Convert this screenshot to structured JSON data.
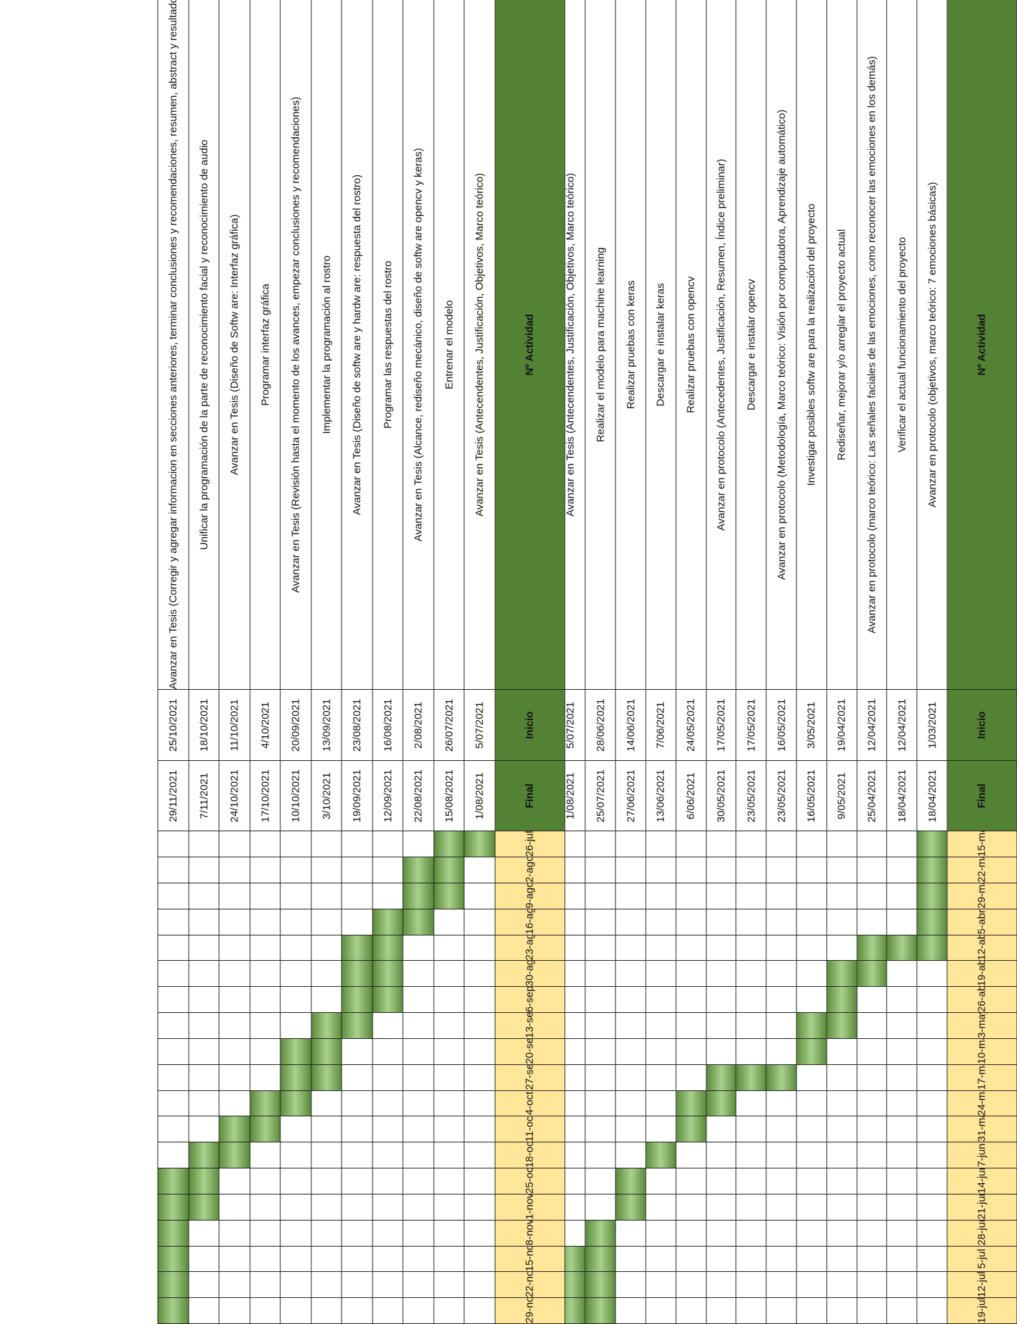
{
  "headers": {
    "activity": "Nº Actividad",
    "start": "Inicio",
    "end": "Final"
  },
  "section1": {
    "weeks": [
      "15-mar",
      "22-mar",
      "29-mar",
      "5-abr",
      "12-abr",
      "19-abr",
      "26-abr",
      "3-may",
      "10-may",
      "17-may",
      "24-may",
      "31-may",
      "7-jun",
      "14-jun",
      "21-jun",
      "28-jun",
      "5-jul",
      "12-jul",
      "19-jul"
    ],
    "rows": [
      {
        "activity": "Avanzar en protocolo (objetivos, marco teórico: 7 emociones básicas)",
        "start": "1/03/2021",
        "end": "18/04/2021",
        "bars": [
          0,
          1,
          2,
          3,
          4
        ]
      },
      {
        "activity": "Verificar el actual funcionamiento del proyecto",
        "start": "12/04/2021",
        "end": "18/04/2021",
        "bars": [
          4
        ]
      },
      {
        "activity": "Avanzar en protocolo (marco teórico: Las señales faciales de las emociones, como reconocer las emociones en los demás)",
        "start": "12/04/2021",
        "end": "25/04/2021",
        "bars": [
          4,
          5
        ]
      },
      {
        "activity": "Rediseñar, mejorar y/o arreglar el proyecto actual",
        "start": "19/04/2021",
        "end": "9/05/2021",
        "bars": [
          5,
          6,
          7
        ]
      },
      {
        "activity": "Investigar posibles softw are para la realización del proyecto",
        "start": "3/05/2021",
        "end": "16/05/2021",
        "bars": [
          7,
          8
        ]
      },
      {
        "activity": "Avanzar en protocolo (Metodología, Marco teórico: Visión por computadora, Aprendizaje automático)",
        "start": "16/05/2021",
        "end": "23/05/2021",
        "bars": [
          9
        ]
      },
      {
        "activity": "Descargar e instalar opencv",
        "start": "17/05/2021",
        "end": "23/05/2021",
        "bars": [
          9
        ]
      },
      {
        "activity": "Avanzar en protocolo (Antecedentes, Justificación, Resumen, Índice preliminar)",
        "start": "17/05/2021",
        "end": "30/05/2021",
        "bars": [
          9,
          10
        ]
      },
      {
        "activity": "Realizar pruebas con opencv",
        "start": "24/05/2021",
        "end": "6/06/2021",
        "bars": [
          10,
          11
        ]
      },
      {
        "activity": "Descargar e instalar keras",
        "start": "7/06/2021",
        "end": "13/06/2021",
        "bars": [
          12
        ]
      },
      {
        "activity": "Realizar pruebas con keras",
        "start": "14/06/2021",
        "end": "27/06/2021",
        "bars": [
          13,
          14
        ]
      },
      {
        "activity": "Realizar el modelo para machine learning",
        "start": "28/06/2021",
        "end": "25/07/2021",
        "bars": [
          15,
          16,
          17,
          18
        ]
      },
      {
        "activity": "Avanzar en Tesis (Antecendentes, Justificación, Objetivos, Marco teórico)",
        "start": "5/07/2021",
        "end": "1/08/2021",
        "bars": [
          16,
          17,
          18
        ]
      }
    ]
  },
  "section2": {
    "weeks": [
      "26-jul",
      "2-ago",
      "9-ago",
      "16-ago",
      "23-ago",
      "30-ago",
      "6-sep",
      "13-sep",
      "20-sep",
      "27-sep",
      "4-oct",
      "11-oct",
      "18-oct",
      "25-oct",
      "1-nov",
      "8-nov",
      "15-nov",
      "22-nov",
      "29-nov"
    ],
    "rows": [
      {
        "activity": "Avanzar en Tesis (Antecendentes, Justificación, Objetivos, Marco teórico)",
        "start": "5/07/2021",
        "end": "1/08/2021",
        "bars": [
          0
        ]
      },
      {
        "activity": "Entrenar el modelo",
        "start": "26/07/2021",
        "end": "15/08/2021",
        "bars": [
          0,
          1,
          2
        ]
      },
      {
        "activity": "Avanzar en Tesis (Alcance, rediseño mecánico, diseño de softw are opencv y keras)",
        "start": "2/08/2021",
        "end": "22/08/2021",
        "bars": [
          1,
          2,
          3
        ]
      },
      {
        "activity": "Programar las respuestas del rostro",
        "start": "16/08/2021",
        "end": "12/09/2021",
        "bars": [
          3,
          4,
          5,
          6
        ]
      },
      {
        "activity": "Avanzar en Tesis (Diseño de softw are y hardw are: respuesta del rostro)",
        "start": "23/08/2021",
        "end": "19/09/2021",
        "bars": [
          4,
          5,
          6,
          7
        ]
      },
      {
        "activity": "Implementar la programación al rostro",
        "start": "13/09/2021",
        "end": "3/10/2021",
        "bars": [
          7,
          8,
          9
        ]
      },
      {
        "activity": "Avanzar en Tesis (Revisión hasta el momento de los avances, empezar conclusiones y recomendaciones)",
        "start": "20/09/2021",
        "end": "10/10/2021",
        "bars": [
          8,
          9,
          10
        ]
      },
      {
        "activity": "Programar interfaz gráfica",
        "start": "4/10/2021",
        "end": "17/10/2021",
        "bars": [
          10,
          11
        ]
      },
      {
        "activity": "Avanzar en Tesis (Diseño de Softw are: Interfaz gráfica)",
        "start": "11/10/2021",
        "end": "24/10/2021",
        "bars": [
          11,
          12
        ]
      },
      {
        "activity": "Unificar la programación de la parte de reconocimiento facial y reconocimiento de audio",
        "start": "18/10/2021",
        "end": "7/11/2021",
        "bars": [
          12,
          13,
          14
        ]
      },
      {
        "activity": "Avanzar en Tesis (Corregir y agregar informacion en secciones anteriores, terminar conclusiones y recomendaciones, resumen, abstract y resultados finales)",
        "start": "25/10/2021",
        "end": "29/11/2021",
        "bars": [
          13,
          14,
          15,
          16,
          17,
          18
        ]
      }
    ]
  }
}
